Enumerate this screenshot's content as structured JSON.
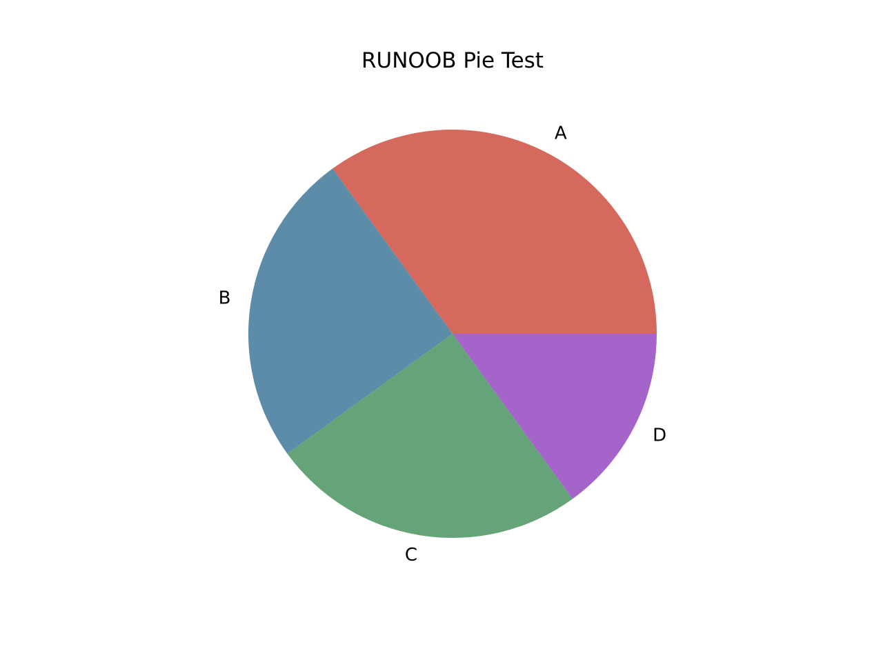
{
  "chart_data": {
    "type": "pie",
    "title": "RUNOOB Pie Test",
    "labels": [
      "A",
      "B",
      "C",
      "D"
    ],
    "values": [
      35,
      25,
      25,
      15
    ],
    "colors": [
      "#d5695d",
      "#5d8ca8",
      "#65a479",
      "#a564c9"
    ],
    "start_angle_deg": 0,
    "direction": "counterclockwise"
  }
}
